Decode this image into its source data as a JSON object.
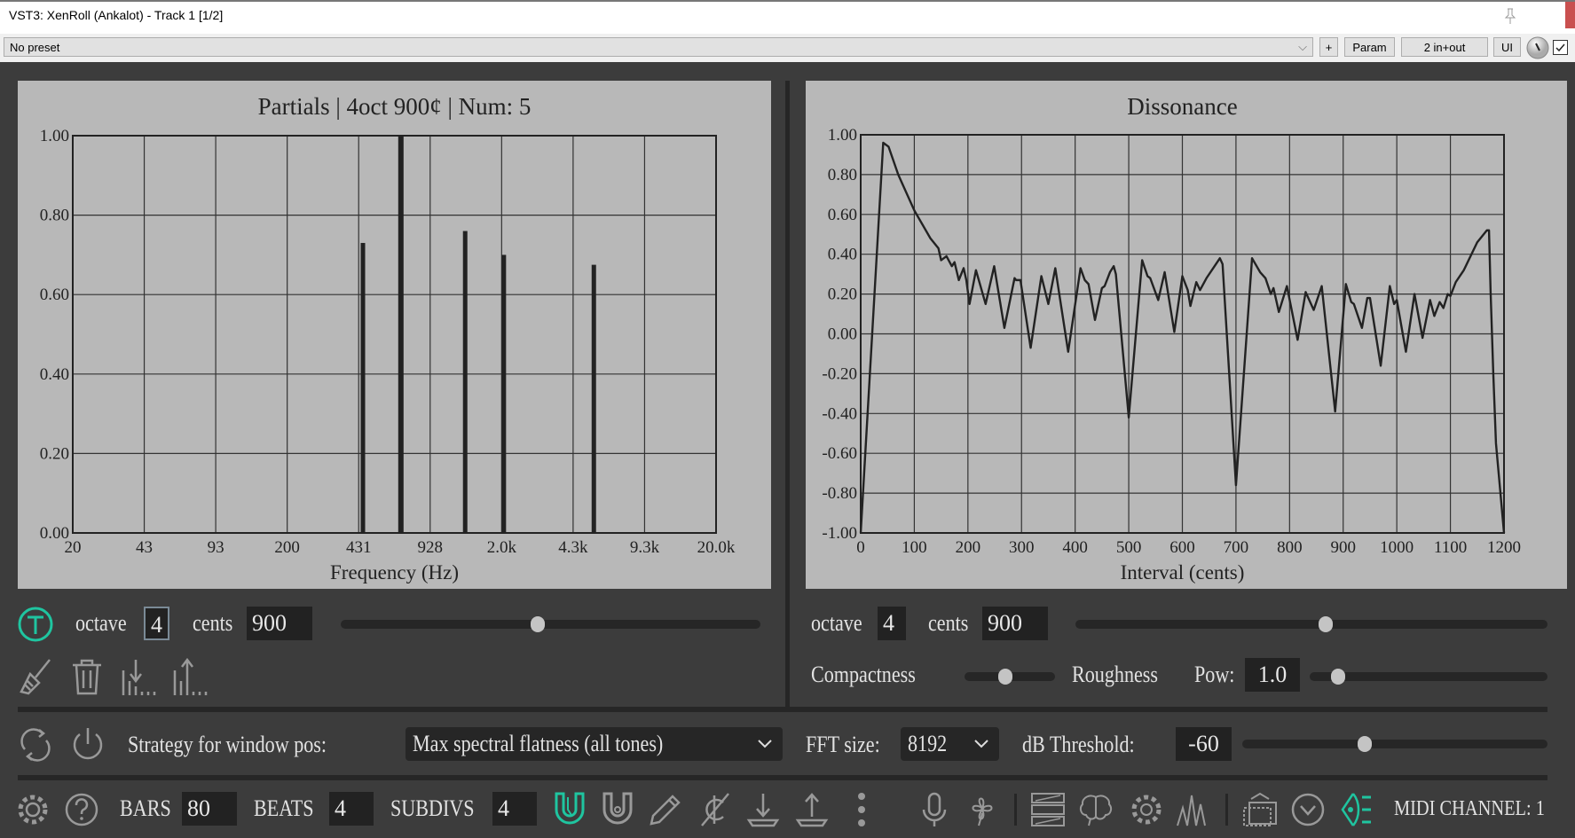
{
  "window": {
    "title": "VST3: XenRoll (Ankalot) - Track 1 [1/2]",
    "close": "x"
  },
  "presetbar": {
    "preset": "No preset",
    "plus": "+",
    "param": "Param",
    "io": "2 in+out",
    "ui": "UI",
    "checkbox_checked": true
  },
  "partials": {
    "controls": {
      "octave_label": "octave",
      "octave": "4",
      "cents_label": "cents",
      "cents": "900",
      "slider_value": 0.47
    },
    "icons": [
      "broom-icon",
      "trash-icon",
      "import-partials-icon",
      "export-partials-icon"
    ]
  },
  "dissonance": {
    "controls": {
      "octave_label": "octave",
      "octave": "4",
      "cents_label": "cents",
      "cents": "900",
      "slider_value": 0.53,
      "compactness_label": "Compactness",
      "compactness_value": 0.45,
      "roughness_label": "Roughness",
      "pow_label": "Pow:",
      "pow": "1.0",
      "pow_slider_value": 0.12
    }
  },
  "strategy": {
    "label": "Strategy for window pos:",
    "value": "Max spectral flatness (all tones)",
    "fft_label": "FFT size:",
    "fft": "8192",
    "db_label": "dB Threshold:",
    "db": "-60",
    "db_slider_value": 0.4
  },
  "bottom": {
    "bars_label": "BARS",
    "bars": "80",
    "beats_label": "BEATS",
    "beats": "4",
    "subdivs_label": "SUBDIVS",
    "subdivs": "4",
    "midi": "MIDI CHANNEL: 1"
  },
  "colors": {
    "accent": "#1fc5a0",
    "panel": "#b8b8b8",
    "background": "#3c3c3c"
  },
  "chart_data": [
    {
      "type": "bar",
      "title": "Partials | 4oct 900¢ | Num: 5",
      "xlabel": "Frequency (Hz)",
      "xscale": "log",
      "xlim": [
        20,
        20000
      ],
      "xticks": [
        "20",
        "43",
        "93",
        "200",
        "431",
        "928",
        "2.0k",
        "4.3k",
        "9.3k",
        "20.0k"
      ],
      "yticks": [
        "0.00",
        "0.20",
        "0.40",
        "0.60",
        "0.80",
        "1.00"
      ],
      "ylim": [
        0,
        1
      ],
      "grid": true,
      "x": [
        451,
        678,
        1352,
        2048,
        5383
      ],
      "values": [
        0.73,
        1.0,
        0.76,
        0.7,
        0.675
      ]
    },
    {
      "type": "line",
      "title": "Dissonance",
      "xlabel": "Interval (cents)",
      "xlim": [
        0,
        1200
      ],
      "ylim": [
        -1,
        1
      ],
      "grid": true,
      "xticks": [
        "0",
        "100",
        "200",
        "300",
        "400",
        "500",
        "600",
        "700",
        "800",
        "900",
        "1000",
        "1100",
        "1200"
      ],
      "yticks": [
        "-1.00",
        "-0.80",
        "-0.60",
        "-0.40",
        "-0.20",
        "0.00",
        "0.20",
        "0.40",
        "0.60",
        "0.80",
        "1.00"
      ],
      "points": [
        [
          0,
          -1.0
        ],
        [
          42,
          0.96
        ],
        [
          52,
          0.94
        ],
        [
          70,
          0.8
        ],
        [
          100,
          0.62
        ],
        [
          130,
          0.48
        ],
        [
          145,
          0.43
        ],
        [
          150,
          0.37
        ],
        [
          160,
          0.39
        ],
        [
          170,
          0.34
        ],
        [
          175,
          0.36
        ],
        [
          183,
          0.27
        ],
        [
          192,
          0.33
        ],
        [
          197,
          0.27
        ],
        [
          203,
          0.15
        ],
        [
          215,
          0.32
        ],
        [
          233,
          0.15
        ],
        [
          249,
          0.34
        ],
        [
          268,
          0.03
        ],
        [
          287,
          0.28
        ],
        [
          290,
          0.27
        ],
        [
          298,
          0.27
        ],
        [
          317,
          -0.07
        ],
        [
          337,
          0.29
        ],
        [
          350,
          0.15
        ],
        [
          363,
          0.33
        ],
        [
          387,
          -0.09
        ],
        [
          410,
          0.33
        ],
        [
          418,
          0.27
        ],
        [
          425,
          0.25
        ],
        [
          437,
          0.07
        ],
        [
          450,
          0.23
        ],
        [
          455,
          0.24
        ],
        [
          465,
          0.31
        ],
        [
          472,
          0.34
        ],
        [
          476,
          0.3
        ],
        [
          500,
          -0.42
        ],
        [
          525,
          0.37
        ],
        [
          535,
          0.29
        ],
        [
          540,
          0.28
        ],
        [
          555,
          0.17
        ],
        [
          567,
          0.31
        ],
        [
          585,
          0.01
        ],
        [
          600,
          0.29
        ],
        [
          610,
          0.22
        ],
        [
          615,
          0.14
        ],
        [
          626,
          0.26
        ],
        [
          633,
          0.22
        ],
        [
          645,
          0.28
        ],
        [
          660,
          0.34
        ],
        [
          670,
          0.38
        ],
        [
          675,
          0.35
        ],
        [
          700,
          -0.76
        ],
        [
          730,
          0.38
        ],
        [
          745,
          0.31
        ],
        [
          755,
          0.28
        ],
        [
          765,
          0.2
        ],
        [
          770,
          0.23
        ],
        [
          780,
          0.11
        ],
        [
          795,
          0.24
        ],
        [
          815,
          -0.03
        ],
        [
          830,
          0.21
        ],
        [
          845,
          0.12
        ],
        [
          855,
          0.2
        ],
        [
          860,
          0.24
        ],
        [
          885,
          -0.39
        ],
        [
          905,
          0.25
        ],
        [
          915,
          0.16
        ],
        [
          920,
          0.15
        ],
        [
          935,
          0.03
        ],
        [
          945,
          0.18
        ],
        [
          950,
          0.18
        ],
        [
          970,
          -0.16
        ],
        [
          987,
          0.24
        ],
        [
          995,
          0.15
        ],
        [
          1000,
          0.17
        ],
        [
          1017,
          -0.09
        ],
        [
          1033,
          0.2
        ],
        [
          1048,
          -0.02
        ],
        [
          1062,
          0.17
        ],
        [
          1070,
          0.09
        ],
        [
          1080,
          0.16
        ],
        [
          1087,
          0.13
        ],
        [
          1095,
          0.2
        ],
        [
          1100,
          0.19
        ],
        [
          1110,
          0.26
        ],
        [
          1125,
          0.32
        ],
        [
          1150,
          0.46
        ],
        [
          1168,
          0.52
        ],
        [
          1172,
          0.52
        ],
        [
          1175,
          0.21
        ],
        [
          1180,
          -0.2
        ],
        [
          1185,
          -0.55
        ],
        [
          1200,
          -1.0
        ]
      ]
    }
  ]
}
